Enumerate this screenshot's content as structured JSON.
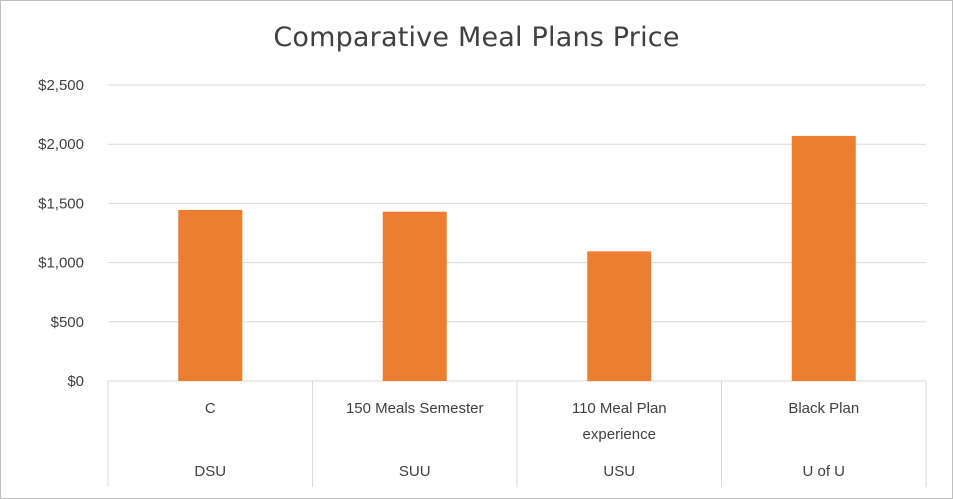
{
  "chart_data": {
    "type": "bar",
    "title": "Comparative Meal Plans Price",
    "xlabel": "",
    "ylabel": "",
    "ylim": [
      0,
      2500
    ],
    "yticks": [
      0,
      500,
      1000,
      1500,
      2000,
      2500
    ],
    "ytick_labels": [
      "$0",
      "$500",
      "$1,000",
      "$1,500",
      "$2,000",
      "$2,500"
    ],
    "categories": [
      {
        "plan": [
          "C"
        ],
        "school": "DSU"
      },
      {
        "plan": [
          "150 Meals Semester"
        ],
        "school": "SUU"
      },
      {
        "plan": [
          "110 Meal Plan",
          "experience"
        ],
        "school": "USU"
      },
      {
        "plan": [
          "Black Plan"
        ],
        "school": "U of U"
      }
    ],
    "values": [
      1445,
      1430,
      1095,
      2070
    ],
    "bar_color": "#ED7D31",
    "grid": true,
    "legend": "none"
  }
}
